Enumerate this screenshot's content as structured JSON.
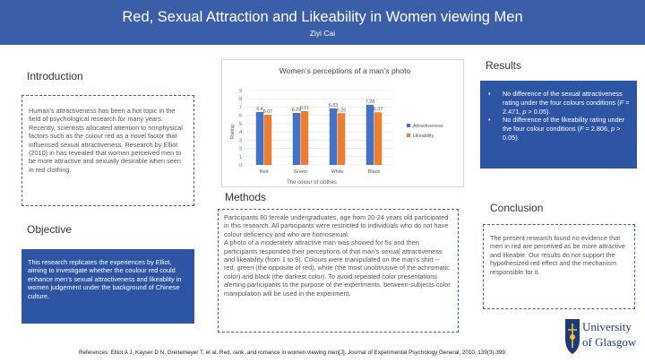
{
  "header": {
    "title": "Red,  Sexual Attraction and Likeability in Women viewing Men",
    "author": "Ziyi Cai"
  },
  "introduction": {
    "heading": "Introduction",
    "text": "Human’s attractiveness has been a hot topic in the field of psychological research for many years. Recently, scientists allocated attention to nonphysical factors such as the colour red as a novel factor that influenced sexual attractiveness. Research by Elliot (2010) in has revealed that women perceived men to be more attractive and sexually desirable when seen in red clothing."
  },
  "objective": {
    "heading": "Objective",
    "text": "This research replicates the experiences by Elliot, aiming to investigate whether the coulour red could enhance men’s sexual attractiveness and likeablity in women judgement under the background of Chinese culture."
  },
  "methods": {
    "heading": "Methods",
    "p1": "Participants 80 female undergraduates, age from 20-24 years old participated in this research. All participants were restricted to individuals who do not have colour deficiency and who are homosexual.",
    "p2": "A photo of a moderately attractive man was showed for 5s and then participants responded their perceptions of that man’s sexual attractiveness  and likeability (from 1 to 9). Colours were manipulated on the man’s shirt -- red, green (the opposite of red), white (the most unobtrusive of the achromatic color) and black (the darkest color). To avoid repeated color presentations alerting participants to the purpose of the experiments, between-subjects color manipulation will be used in the experiment."
  },
  "results": {
    "heading": "Results",
    "bullet": "•",
    "items": [
      {
        "pre": "No difference of the sexual attractiveness rating under the four colours conditions (",
        "f": "F",
        "mid1": " = 2.471, ",
        "p": "p",
        "post": " > 0.05)."
      },
      {
        "pre": "No difference of the likeability rating under the four colour conditions (",
        "f": "F",
        "mid1": " = 2.806, ",
        "p": "p",
        "post": " > 0.05)."
      }
    ]
  },
  "conclusion": {
    "heading": "Conclusion",
    "text": "The present research found no evidence that men in red are perceived as be more attractive and likeable. Our results do not support the hypothesized red effect and the mechanism responsible for it."
  },
  "references": "References:  Elliot A J, Kayser D N, Greitemeyer T, et al. Red, rank, and romance in women viewing men[J]. Journal of Experimental Psychology General, 2010, 139(3):399.",
  "logo": {
    "line1": "University",
    "line2": "of Glasgow"
  },
  "chart_data": {
    "type": "bar",
    "title": "Women’s perceptions of a man’s photo",
    "xlabel": "The colour of  clothes",
    "ylabel": "Rating",
    "categories": [
      "Red",
      "Green",
      "White",
      "Black"
    ],
    "ylim": [
      0,
      9
    ],
    "yticks": [
      0,
      1,
      2,
      3,
      4,
      5,
      6,
      7,
      8,
      9
    ],
    "grid": true,
    "legend_position": "right",
    "series": [
      {
        "name": "Attractiveness",
        "color": "#4472c4",
        "values": [
          6.4,
          6.29,
          6.83,
          7.28
        ],
        "labels": [
          "6.4",
          "6.29",
          "6.83",
          "7.28"
        ]
      },
      {
        "name": "Likeability",
        "color": "#ed7d31",
        "values": [
          6.07,
          6.51,
          6.26,
          6.37
        ],
        "labels": [
          "6.07",
          "6.51",
          "6.26",
          "6.37"
        ]
      }
    ]
  }
}
